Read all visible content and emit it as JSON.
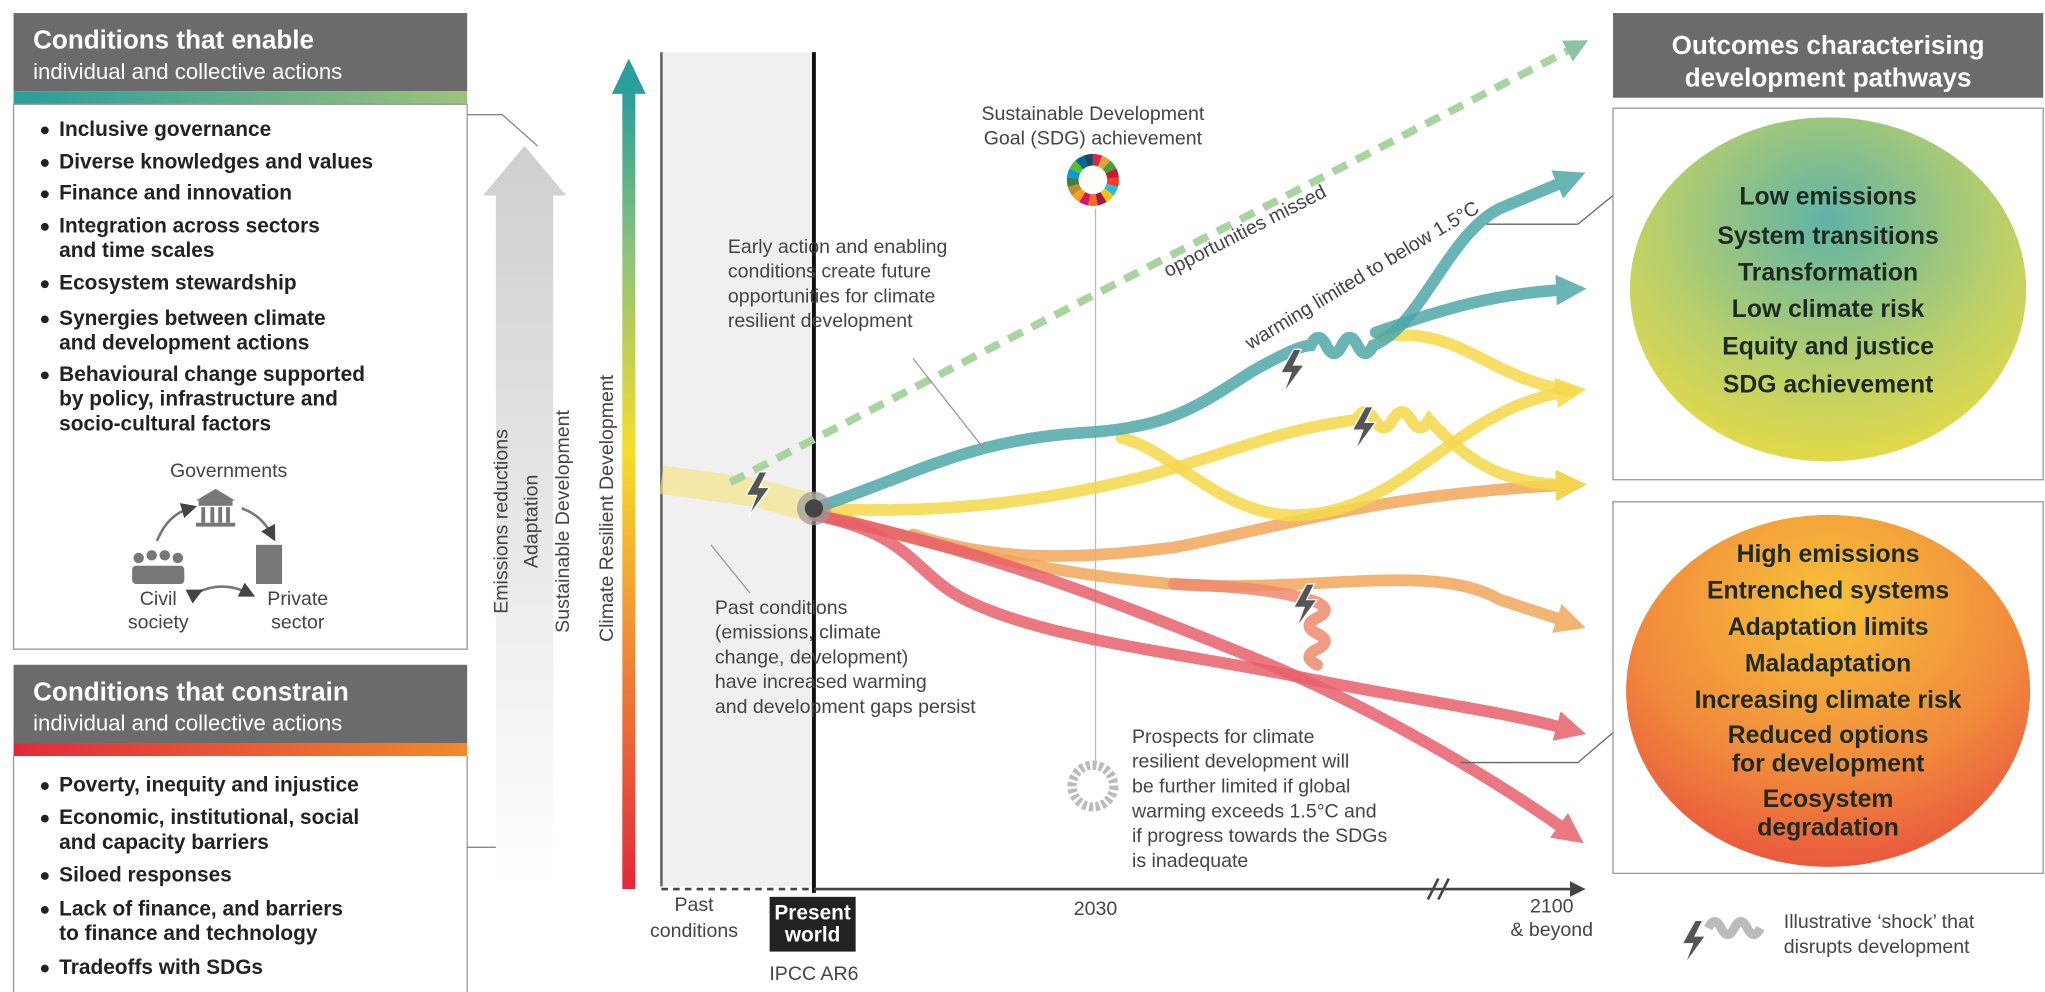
{
  "enable": {
    "title": "Conditions that enable",
    "subtitle": "individual and collective actions",
    "items": [
      [
        "Inclusive governance"
      ],
      [
        "Diverse knowledges and values"
      ],
      [
        "Finance and innovation"
      ],
      [
        "Integration across sectors",
        "and time scales"
      ],
      [
        "Ecosystem stewardship"
      ],
      [
        "Synergies between climate",
        "and development actions"
      ],
      [
        "Behavioural change supported",
        "by policy, infrastructure and",
        "socio-cultural factors"
      ]
    ],
    "actors": {
      "governments": "Governments",
      "civil": [
        "Civil",
        "society"
      ],
      "private": [
        "Private",
        "sector"
      ]
    }
  },
  "constrain": {
    "title": "Conditions that constrain",
    "subtitle": "individual and collective actions",
    "items": [
      [
        "Poverty, inequity and injustice"
      ],
      [
        "Economic, institutional, social",
        "and capacity barriers"
      ],
      [
        "Siloed responses"
      ],
      [
        "Lack of finance, and barriers",
        "to finance and technology"
      ],
      [
        "Tradeoffs with SDGs"
      ]
    ]
  },
  "arrow_labels": [
    "Emissions reductions",
    "Adaptation",
    "Sustainable Development"
  ],
  "axis_label": "Climate Resilient Development",
  "timeline": {
    "past": [
      "Past",
      "conditions"
    ],
    "present": [
      "Present",
      "world"
    ],
    "report": "IPCC AR6",
    "mid": "2030",
    "end": [
      "2100",
      "& beyond"
    ]
  },
  "annotations": {
    "sdg": [
      "Sustainable Development",
      "Goal (SDG) achievement"
    ],
    "missed": "opportunities missed",
    "limited": "warming limited to below 1.5°C",
    "early": [
      "Early action and enabling",
      "conditions create future",
      "opportunities for climate",
      "resilient development"
    ],
    "past": [
      "Past conditions",
      "(emissions, climate",
      "change, development)",
      "have increased warming",
      "and development gaps persist"
    ],
    "prospects": [
      "Prospects for climate",
      "resilient development will",
      "be further limited if global",
      "warming exceeds 1.5°C and",
      "if progress towards the SDGs",
      "is inadequate"
    ]
  },
  "outcomes": {
    "title": [
      "Outcomes characterising",
      "development pathways"
    ],
    "positive": [
      [
        "Low emissions"
      ],
      [
        "System transitions"
      ],
      [
        "Transformation"
      ],
      [
        "Low climate risk"
      ],
      [
        "Equity and justice"
      ],
      [
        "SDG achievement"
      ]
    ],
    "negative": [
      [
        "High emissions"
      ],
      [
        "Entrenched systems"
      ],
      [
        "Adaptation limits"
      ],
      [
        "Maladaptation"
      ],
      [
        "Increasing climate risk"
      ],
      [
        "Reduced options",
        "for development"
      ],
      [
        "Ecosystem",
        "degradation"
      ]
    ]
  },
  "legend": [
    "Illustrative ‘shock’ that",
    "disrupts development"
  ]
}
